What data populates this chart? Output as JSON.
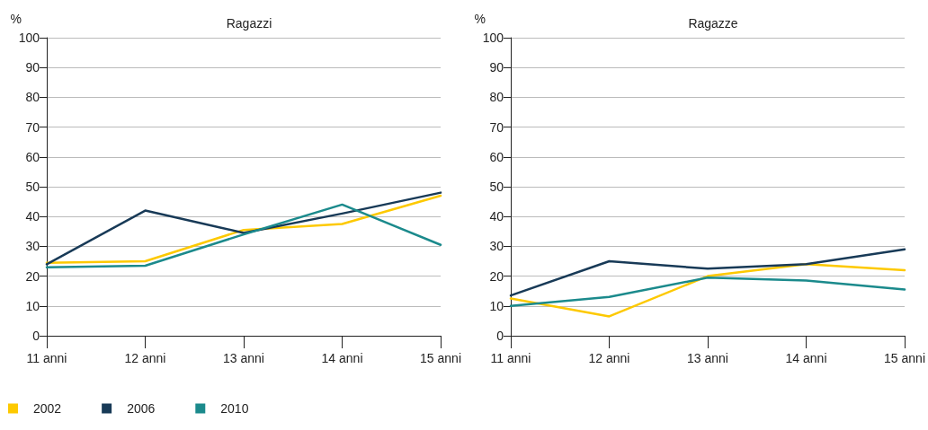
{
  "chart_data": [
    {
      "type": "line",
      "title": "Ragazzi",
      "ylabel": "%",
      "categories": [
        "11 anni",
        "12 anni",
        "13 anni",
        "14 anni",
        "15 anni"
      ],
      "ylim": [
        0,
        100
      ],
      "yticks": [
        0,
        10,
        20,
        30,
        40,
        50,
        60,
        70,
        80,
        90,
        100
      ],
      "grid": "y",
      "legend": "bottom left",
      "marker": "none",
      "line_style": "solid",
      "series": [
        {
          "name": "2002",
          "color": "#fdc900",
          "values": [
            24.5,
            25,
            35.5,
            37.5,
            47
          ]
        },
        {
          "name": "2006",
          "color": "#183a57",
          "values": [
            24,
            42,
            34.5,
            41,
            48
          ]
        },
        {
          "name": "2010",
          "color": "#1b8a8c",
          "values": [
            23,
            23.5,
            34,
            44,
            30.5
          ]
        }
      ]
    },
    {
      "type": "line",
      "title": "Ragazze",
      "ylabel": "%",
      "categories": [
        "11 anni",
        "12 anni",
        "13 anni",
        "14 anni",
        "15 anni"
      ],
      "ylim": [
        0,
        100
      ],
      "yticks": [
        0,
        10,
        20,
        30,
        40,
        50,
        60,
        70,
        80,
        90,
        100
      ],
      "grid": "y",
      "legend": false,
      "marker": "none",
      "line_style": "solid",
      "series": [
        {
          "name": "2002",
          "color": "#fdc900",
          "values": [
            12.5,
            6.5,
            20,
            24,
            22
          ]
        },
        {
          "name": "2006",
          "color": "#183a57",
          "values": [
            13.5,
            25,
            22.5,
            24,
            29
          ]
        },
        {
          "name": "2010",
          "color": "#1b8a8c",
          "values": [
            10,
            13,
            19.5,
            18.5,
            15.5
          ]
        }
      ]
    }
  ]
}
